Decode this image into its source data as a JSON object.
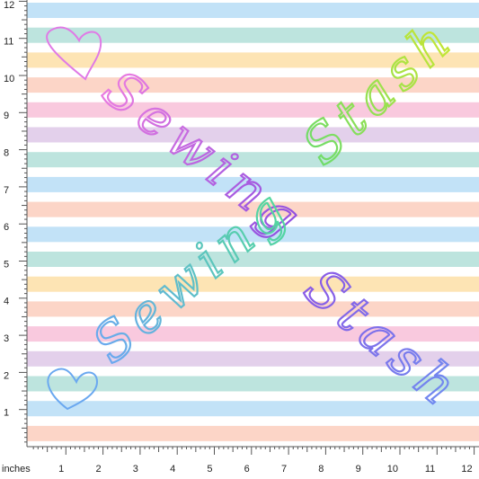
{
  "ruler": {
    "unit": "inches",
    "left_labels": [
      1,
      2,
      3,
      4,
      5,
      6,
      7,
      8,
      9,
      10,
      11,
      12
    ],
    "bottom_labels": [
      1,
      2,
      3,
      4,
      5,
      6,
      7,
      8,
      9,
      10,
      11,
      12
    ]
  },
  "watermarks": [
    "Sewing",
    "Stash",
    "Sewing",
    "Stash"
  ]
}
